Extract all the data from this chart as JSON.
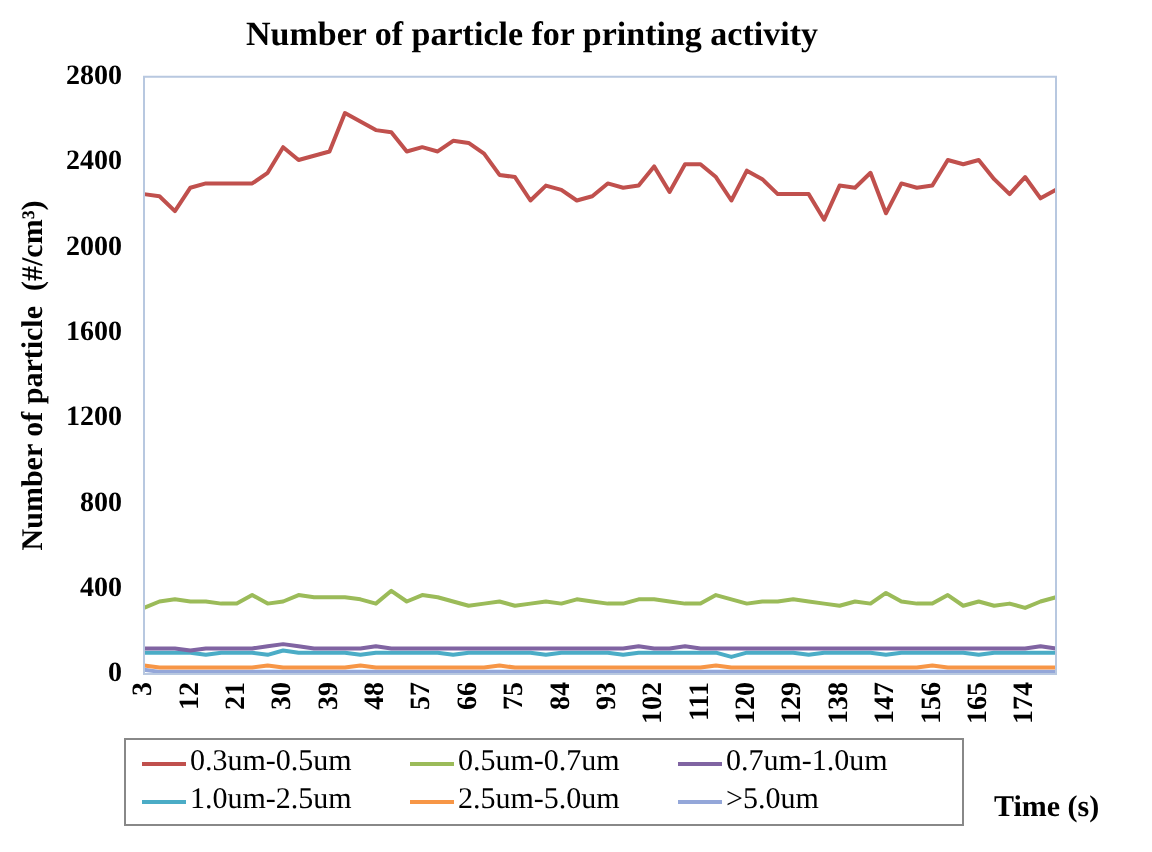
{
  "chart_data": {
    "type": "line",
    "title": "Number of particle for printing activity",
    "xlabel": "Time (s)",
    "ylabel": "Number of particle  (#/cm³)",
    "categories": [
      "3",
      null,
      null,
      "12",
      null,
      null,
      "21",
      null,
      null,
      "30",
      null,
      null,
      "39",
      null,
      null,
      "48",
      null,
      null,
      "57",
      null,
      null,
      "66",
      null,
      null,
      "75",
      null,
      null,
      "84",
      null,
      null,
      "93",
      null,
      null,
      "102",
      null,
      null,
      "111",
      null,
      null,
      "120",
      null,
      null,
      "129",
      null,
      null,
      "138",
      null,
      null,
      "147",
      null,
      null,
      "156",
      null,
      null,
      "165",
      null,
      null,
      "174",
      null,
      null
    ],
    "ylim": [
      0,
      2800
    ],
    "yticks": [
      0,
      400,
      800,
      1200,
      1600,
      2000,
      2400,
      2800
    ],
    "grid": false,
    "legend": "bottom",
    "marker": "none",
    "series": [
      {
        "name": "0.3um-0.5um",
        "color": "#c0504d",
        "values": [
          2250,
          2240,
          2170,
          2280,
          2300,
          2300,
          2300,
          2300,
          2350,
          2470,
          2410,
          2430,
          2450,
          2630,
          2590,
          2550,
          2540,
          2450,
          2470,
          2450,
          2500,
          2490,
          2440,
          2340,
          2330,
          2220,
          2290,
          2270,
          2220,
          2240,
          2300,
          2280,
          2290,
          2380,
          2260,
          2390,
          2390,
          2330,
          2220,
          2360,
          2320,
          2250,
          2250,
          2250,
          2130,
          2290,
          2280,
          2350,
          2160,
          2300,
          2280,
          2290,
          2410,
          2390,
          2410,
          2320,
          2250,
          2330,
          2230,
          2270
        ]
      },
      {
        "name": "0.5um-0.7um",
        "color": "#9bbb59",
        "values": [
          310,
          340,
          350,
          340,
          340,
          330,
          330,
          370,
          330,
          340,
          370,
          360,
          360,
          360,
          350,
          330,
          390,
          340,
          370,
          360,
          340,
          320,
          330,
          340,
          320,
          330,
          340,
          330,
          350,
          340,
          330,
          330,
          350,
          350,
          340,
          330,
          330,
          370,
          350,
          330,
          340,
          340,
          350,
          340,
          330,
          320,
          340,
          330,
          380,
          340,
          330,
          330,
          370,
          320,
          340,
          320,
          330,
          310,
          340,
          360
        ]
      },
      {
        "name": "0.7um-1.0um",
        "color": "#8064a2",
        "values": [
          120,
          120,
          120,
          110,
          120,
          120,
          120,
          120,
          130,
          140,
          130,
          120,
          120,
          120,
          120,
          130,
          120,
          120,
          120,
          120,
          120,
          120,
          120,
          120,
          120,
          120,
          120,
          120,
          120,
          120,
          120,
          120,
          130,
          120,
          120,
          130,
          120,
          120,
          120,
          120,
          120,
          120,
          120,
          120,
          120,
          120,
          120,
          120,
          120,
          120,
          120,
          120,
          120,
          120,
          120,
          120,
          120,
          120,
          130,
          120
        ]
      },
      {
        "name": "1.0um-2.5um",
        "color": "#4bacc6",
        "values": [
          100,
          100,
          100,
          100,
          90,
          100,
          100,
          100,
          90,
          110,
          100,
          100,
          100,
          100,
          90,
          100,
          100,
          100,
          100,
          100,
          90,
          100,
          100,
          100,
          100,
          100,
          90,
          100,
          100,
          100,
          100,
          90,
          100,
          100,
          100,
          100,
          100,
          100,
          80,
          100,
          100,
          100,
          100,
          90,
          100,
          100,
          100,
          100,
          90,
          100,
          100,
          100,
          100,
          100,
          90,
          100,
          100,
          100,
          100,
          100
        ]
      },
      {
        "name": "2.5um-5.0um",
        "color": "#f79646",
        "values": [
          40,
          30,
          30,
          30,
          30,
          30,
          30,
          30,
          40,
          30,
          30,
          30,
          30,
          30,
          40,
          30,
          30,
          30,
          30,
          30,
          30,
          30,
          30,
          40,
          30,
          30,
          30,
          30,
          30,
          30,
          30,
          30,
          30,
          30,
          30,
          30,
          30,
          40,
          30,
          30,
          30,
          30,
          30,
          30,
          30,
          30,
          30,
          30,
          30,
          30,
          30,
          40,
          30,
          30,
          30,
          30,
          30,
          30,
          30,
          30
        ]
      },
      {
        "name": ">5.0um",
        "color": "#94a7d9",
        "values": [
          20,
          10,
          10,
          10,
          10,
          10,
          10,
          10,
          10,
          10,
          10,
          10,
          10,
          10,
          10,
          10,
          10,
          10,
          10,
          10,
          10,
          10,
          10,
          10,
          10,
          10,
          10,
          10,
          10,
          10,
          10,
          10,
          10,
          10,
          10,
          10,
          10,
          10,
          10,
          10,
          10,
          10,
          10,
          10,
          10,
          10,
          10,
          10,
          10,
          10,
          10,
          10,
          10,
          10,
          10,
          10,
          10,
          10,
          10,
          10
        ]
      }
    ]
  }
}
